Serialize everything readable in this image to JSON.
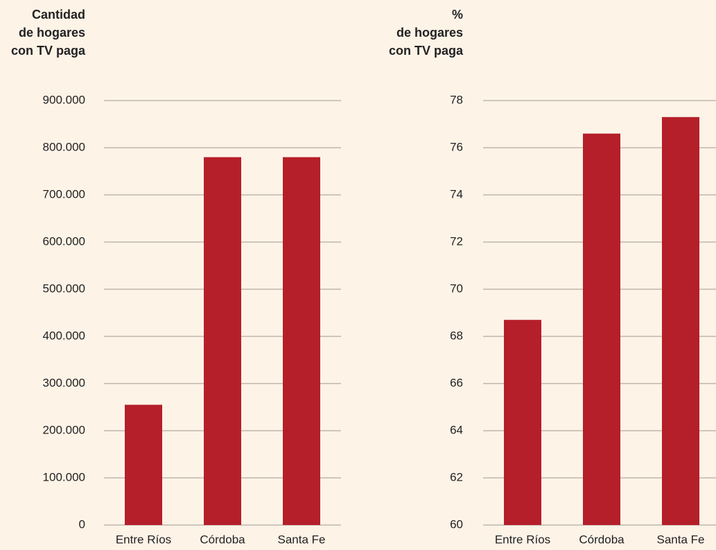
{
  "chart_data": [
    {
      "type": "bar",
      "ylabel": [
        "Cantidad",
        "de hogares",
        "con TV paga"
      ],
      "categories": [
        "Entre Ríos",
        "Córdoba",
        "Santa Fe"
      ],
      "values": [
        255000,
        780000,
        780000
      ],
      "color": "#b51f2a",
      "ylim": [
        0,
        900000
      ],
      "yticks": [
        0,
        {
          "value": 100000,
          "label": "100.000"
        },
        {
          "value": 200000,
          "label": "200.000"
        },
        {
          "value": 300000,
          "label": "300.000"
        },
        {
          "value": 400000,
          "label": "400.000"
        },
        {
          "value": 500000,
          "label": "500.000"
        },
        {
          "value": 600000,
          "label": "600.000"
        },
        {
          "value": 700000,
          "label": "700.000"
        },
        {
          "value": 800000,
          "label": "800.000"
        },
        {
          "value": 900000,
          "label": "900.000"
        }
      ],
      "grid": true
    },
    {
      "type": "bar",
      "ylabel": [
        "%",
        "de hogares",
        "con TV paga"
      ],
      "categories": [
        "Entre Ríos",
        "Córdoba",
        "Santa Fe"
      ],
      "values": [
        68.7,
        76.6,
        77.3
      ],
      "color": "#b51f2a",
      "ylim": [
        60,
        78
      ],
      "yticks": [
        60,
        62,
        64,
        66,
        68,
        70,
        72,
        74,
        76,
        78
      ],
      "grid": true
    }
  ]
}
